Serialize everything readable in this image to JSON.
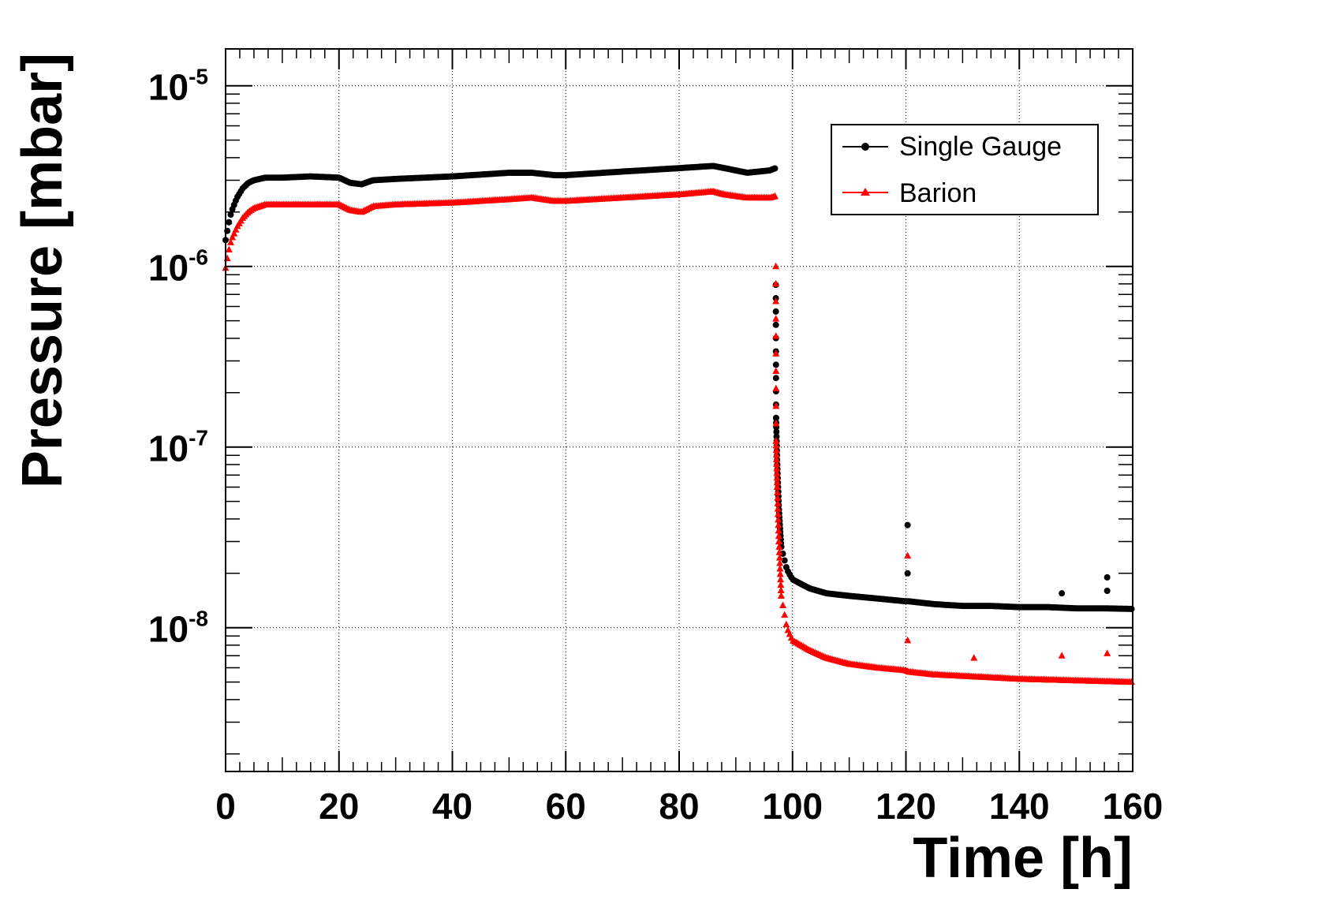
{
  "chart_data": {
    "type": "scatter",
    "title": "",
    "xlabel": "Time [h]",
    "ylabel": "Pressure [mbar]",
    "xlim": [
      0,
      160
    ],
    "ylim": [
      1.6e-09,
      1.6e-05
    ],
    "yscale": "log",
    "grid": true,
    "legend_position": "top-right",
    "x_ticks": [
      {
        "value": 0,
        "label": "0"
      },
      {
        "value": 20,
        "label": "20"
      },
      {
        "value": 40,
        "label": "40"
      },
      {
        "value": 60,
        "label": "60"
      },
      {
        "value": 80,
        "label": "80"
      },
      {
        "value": 100,
        "label": "100"
      },
      {
        "value": 120,
        "label": "120"
      },
      {
        "value": 140,
        "label": "140"
      },
      {
        "value": 160,
        "label": "160"
      }
    ],
    "y_ticks": [
      {
        "value": 1e-05,
        "base": "10",
        "exp": "-5"
      },
      {
        "value": 1e-06,
        "base": "10",
        "exp": "-6"
      },
      {
        "value": 1e-07,
        "base": "10",
        "exp": "-7"
      },
      {
        "value": 1e-08,
        "base": "10",
        "exp": "-8"
      }
    ],
    "series": [
      {
        "name": "Single Gauge",
        "color": "#000000",
        "marker": "circle",
        "x": [
          0,
          0.5,
          1,
          2,
          3,
          4,
          5,
          7,
          10,
          15,
          20,
          22,
          24,
          26,
          30,
          40,
          50,
          54,
          58,
          60,
          70,
          80,
          86,
          88,
          92,
          96,
          97,
          97.05,
          97.1,
          97.3,
          97.6,
          98,
          99,
          100,
          103,
          106,
          110,
          115,
          120,
          120.5,
          125,
          130,
          135,
          140,
          145,
          150,
          155,
          160
        ],
        "y": [
          1.4e-06,
          1.7e-06,
          2e-06,
          2.4e-06,
          2.7e-06,
          2.9e-06,
          3e-06,
          3.1e-06,
          3.1e-06,
          3.15e-06,
          3.1e-06,
          2.9e-06,
          2.85e-06,
          3e-06,
          3.05e-06,
          3.15e-06,
          3.3e-06,
          3.3e-06,
          3.2e-06,
          3.2e-06,
          3.35e-06,
          3.5e-06,
          3.6e-06,
          3.5e-06,
          3.3e-06,
          3.4e-06,
          3.5e-06,
          7.9e-07,
          1.45e-07,
          8e-08,
          4.5e-08,
          2.8e-08,
          2.1e-08,
          1.85e-08,
          1.65e-08,
          1.55e-08,
          1.5e-08,
          1.45e-08,
          1.4e-08,
          1.4e-08,
          1.35e-08,
          1.32e-08,
          1.32e-08,
          1.3e-08,
          1.3e-08,
          1.28e-08,
          1.28e-08,
          1.27e-08
        ]
      },
      {
        "name": "Barion",
        "color": "#ff0000",
        "marker": "triangle",
        "x": [
          0,
          0.5,
          1,
          2,
          3,
          4,
          5,
          7,
          10,
          15,
          20,
          22,
          24,
          26,
          30,
          40,
          50,
          54,
          58,
          60,
          70,
          80,
          86,
          88,
          92,
          96,
          97,
          97.05,
          97.1,
          97.3,
          97.6,
          98,
          99,
          100,
          103,
          106,
          110,
          115,
          120,
          120.5,
          125,
          130,
          135,
          140,
          145,
          150,
          155,
          160
        ],
        "y": [
          9.8e-07,
          1.2e-06,
          1.4e-06,
          1.65e-06,
          1.85e-06,
          2e-06,
          2.1e-06,
          2.2e-06,
          2.2e-06,
          2.2e-06,
          2.2e-06,
          2.05e-06,
          2e-06,
          2.15e-06,
          2.2e-06,
          2.25e-06,
          2.35e-06,
          2.4e-06,
          2.3e-06,
          2.3e-06,
          2.4e-06,
          2.5e-06,
          2.6e-06,
          2.5e-06,
          2.4e-06,
          2.4e-06,
          2.45e-06,
          1e-06,
          1.08e-07,
          6e-08,
          3e-08,
          1.5e-08,
          1e-08,
          8.5e-09,
          7.5e-09,
          6.8e-09,
          6.3e-09,
          6e-09,
          5.8e-09,
          5.7e-09,
          5.5e-09,
          5.4e-09,
          5.3e-09,
          5.2e-09,
          5.15e-09,
          5.1e-09,
          5.05e-09,
          5e-09
        ]
      }
    ],
    "outliers": [
      {
        "series": "Single Gauge",
        "x": 120.3,
        "y": 3.7e-08
      },
      {
        "series": "Single Gauge",
        "x": 120.3,
        "y": 2e-08
      },
      {
        "series": "Single Gauge",
        "x": 155.5,
        "y": 1.9e-08
      },
      {
        "series": "Single Gauge",
        "x": 155.5,
        "y": 1.6e-08
      },
      {
        "series": "Single Gauge",
        "x": 147.5,
        "y": 1.55e-08
      },
      {
        "series": "Barion",
        "x": 120.3,
        "y": 2.5e-08
      },
      {
        "series": "Barion",
        "x": 120.3,
        "y": 8.5e-09
      },
      {
        "series": "Barion",
        "x": 155.5,
        "y": 7.2e-09
      },
      {
        "series": "Barion",
        "x": 132,
        "y": 6.8e-09
      },
      {
        "series": "Barion",
        "x": 147.5,
        "y": 7e-09
      }
    ]
  }
}
